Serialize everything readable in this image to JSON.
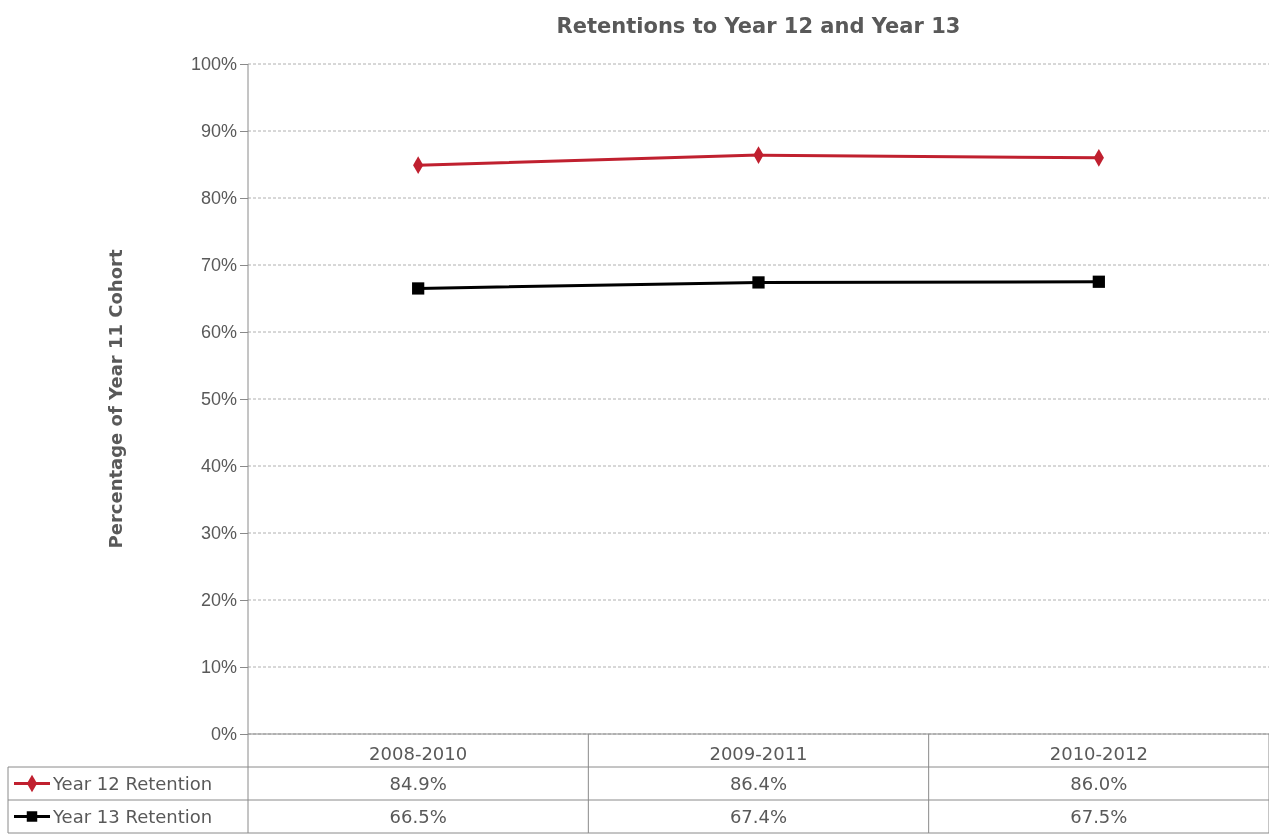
{
  "chart_data": {
    "type": "line",
    "title": "Retentions to Year 12 and Year 13",
    "ylabel": "Percentage of Year 11 Cohort",
    "categories": [
      "2008-2010",
      "2009-2011",
      "2010-2012"
    ],
    "series": [
      {
        "name": "Year 12 Retention",
        "color": "#c0202f",
        "marker": "diamond",
        "values": [
          84.9,
          86.4,
          86.0
        ],
        "value_labels": [
          "84.9%",
          "86.4%",
          "86.0%"
        ]
      },
      {
        "name": "Year 13 Retention",
        "color": "#000000",
        "marker": "square",
        "values": [
          66.5,
          67.4,
          67.5
        ],
        "value_labels": [
          "66.5%",
          "67.4%",
          "67.5%"
        ]
      }
    ],
    "ylim": [
      0,
      100
    ],
    "yticks": [
      {
        "value": 0,
        "label": "0%"
      },
      {
        "value": 10,
        "label": "10%"
      },
      {
        "value": 20,
        "label": "20%"
      },
      {
        "value": 30,
        "label": "30%"
      },
      {
        "value": 40,
        "label": "40%"
      },
      {
        "value": 50,
        "label": "50%"
      },
      {
        "value": 60,
        "label": "60%"
      },
      {
        "value": 70,
        "label": "70%"
      },
      {
        "value": 80,
        "label": "80%"
      },
      {
        "value": 90,
        "label": "90%"
      },
      {
        "value": 100,
        "label": "100%"
      }
    ],
    "grid": "y",
    "legend": "bottom",
    "line_style": "solid"
  }
}
